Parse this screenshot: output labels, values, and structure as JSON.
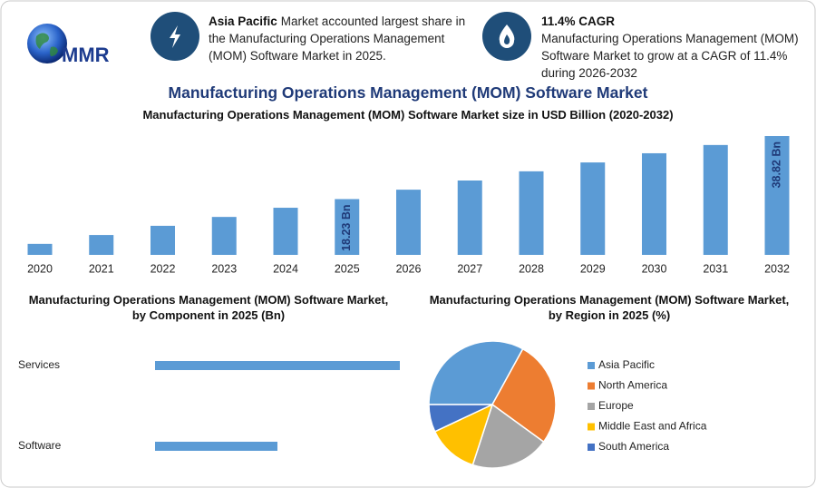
{
  "logo": "MMR",
  "highlights": [
    {
      "bold": "Asia Pacific",
      "text": "Market accounted largest share in the Manufacturing Operations Management (MOM) Software Market in 2025."
    },
    {
      "bold": "11.4% CAGR",
      "text": "Manufacturing Operations Management (MOM) Software Market to grow at a CAGR of 11.4% during 2026-2032"
    }
  ],
  "title": "Manufacturing Operations Management (MOM) Software Market",
  "chart_data": [
    {
      "type": "bar",
      "title": "Manufacturing Operations Management (MOM) Software Market size in USD Billion (2020-2032)",
      "categories": [
        "2020",
        "2021",
        "2022",
        "2023",
        "2024",
        "2025",
        "2026",
        "2027",
        "2028",
        "2029",
        "2030",
        "2031",
        "2032"
      ],
      "values": [
        3.6,
        6.5,
        9.5,
        12.4,
        15.4,
        18.23,
        21.3,
        24.3,
        27.3,
        30.2,
        33.2,
        35.9,
        38.82
      ],
      "value_labels": [
        null,
        null,
        null,
        null,
        null,
        "18.23 Bn",
        null,
        null,
        null,
        null,
        null,
        null,
        "38.82 Bn"
      ],
      "color": "#5b9bd5"
    },
    {
      "type": "hbar",
      "title": "Manufacturing Operations Management (MOM) Software Market, by Component in 2025 (Bn)",
      "categories": [
        "Services",
        "Software"
      ],
      "values": [
        12.2,
        6.1
      ],
      "color": "#5b9bd5"
    },
    {
      "type": "pie",
      "title": "Manufacturing Operations Management (MOM) Software Market, by Region in 2025 (%)",
      "categories": [
        "Asia Pacific",
        "North America",
        "Europe",
        "Middle East and Africa",
        "South America"
      ],
      "values": [
        33,
        27,
        20,
        13,
        7
      ],
      "colors": [
        "#5b9bd5",
        "#ed7d31",
        "#a5a5a5",
        "#ffc000",
        "#4472c4"
      ],
      "legend": "right"
    }
  ]
}
